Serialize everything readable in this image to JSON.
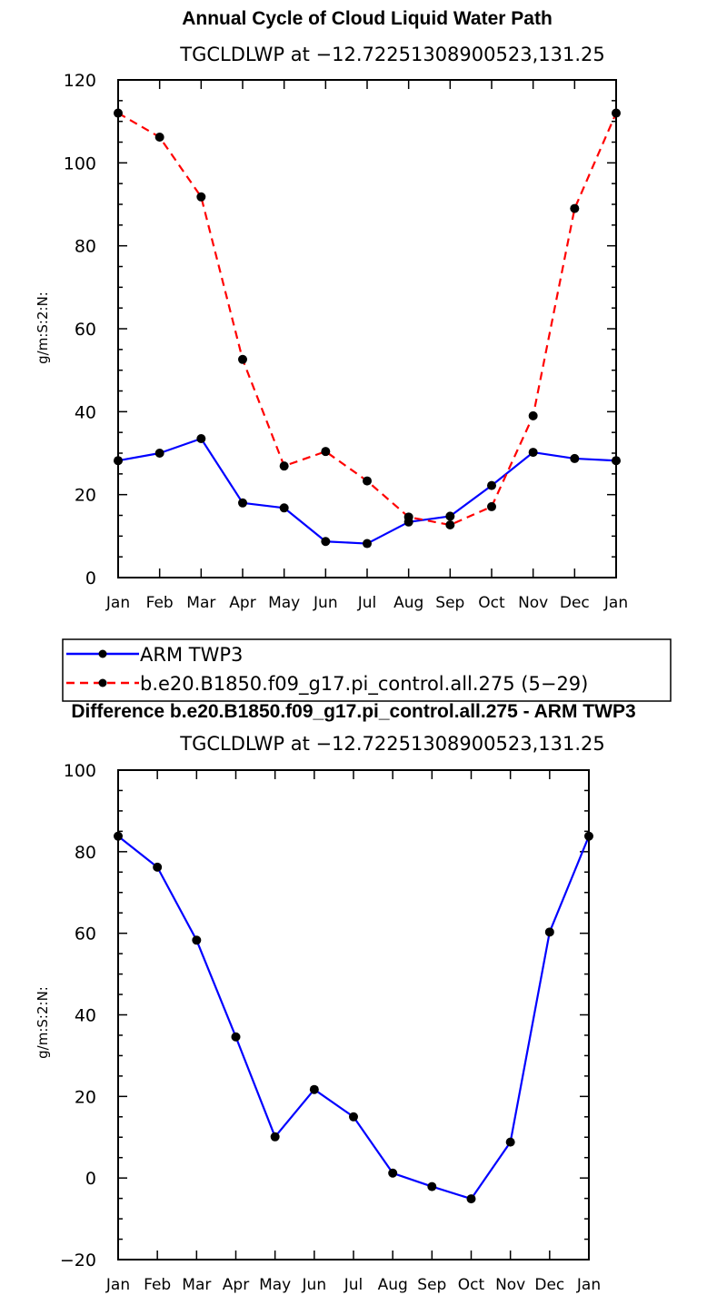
{
  "chart_data": [
    {
      "type": "line",
      "title": "Annual Cycle of Cloud Liquid Water Path",
      "subtitle": "TGCLDLWP at −12.72251308900523,131.25",
      "xlabel": "",
      "ylabel": "g/m:S:2:N:",
      "categories": [
        "Jan",
        "Feb",
        "Mar",
        "Apr",
        "May",
        "Jun",
        "Jul",
        "Aug",
        "Sep",
        "Oct",
        "Nov",
        "Dec",
        "Jan"
      ],
      "ylim": [
        0,
        120
      ],
      "yticks": [
        0,
        20,
        40,
        60,
        80,
        100,
        120
      ],
      "grid": false,
      "legend_position": "bottom-left",
      "series": [
        {
          "name": "ARM TWP3",
          "color": "#0000ff",
          "dash": "solid",
          "values": [
            28.2,
            30.0,
            33.5,
            18.0,
            16.8,
            8.7,
            8.2,
            13.4,
            14.8,
            22.2,
            30.2,
            28.7,
            28.2
          ]
        },
        {
          "name": "b.e20.B1850.f09_g17.pi_control.all.275 (5−29)",
          "color": "#ff0000",
          "dash": "dashed",
          "values": [
            112.0,
            106.2,
            91.8,
            52.6,
            26.9,
            30.4,
            23.3,
            14.6,
            12.7,
            17.1,
            39.0,
            89.0,
            112.0
          ]
        }
      ]
    },
    {
      "type": "line",
      "title": "Difference b.e20.B1850.f09_g17.pi_control.all.275 - ARM TWP3",
      "subtitle": "TGCLDLWP at −12.72251308900523,131.25",
      "xlabel": "",
      "ylabel": "g/m:S:2:N:",
      "categories": [
        "Jan",
        "Feb",
        "Mar",
        "Apr",
        "May",
        "Jun",
        "Jul",
        "Aug",
        "Sep",
        "Oct",
        "Nov",
        "Dec",
        "Jan"
      ],
      "ylim": [
        -20,
        100
      ],
      "yticks": [
        -20,
        0,
        20,
        40,
        60,
        80,
        100
      ],
      "grid": false,
      "series": [
        {
          "color": "#0000ff",
          "dash": "solid",
          "values": [
            83.8,
            76.2,
            58.3,
            34.6,
            10.1,
            21.7,
            15.0,
            1.2,
            -2.1,
            -5.1,
            8.8,
            60.3,
            83.8
          ]
        }
      ]
    }
  ]
}
